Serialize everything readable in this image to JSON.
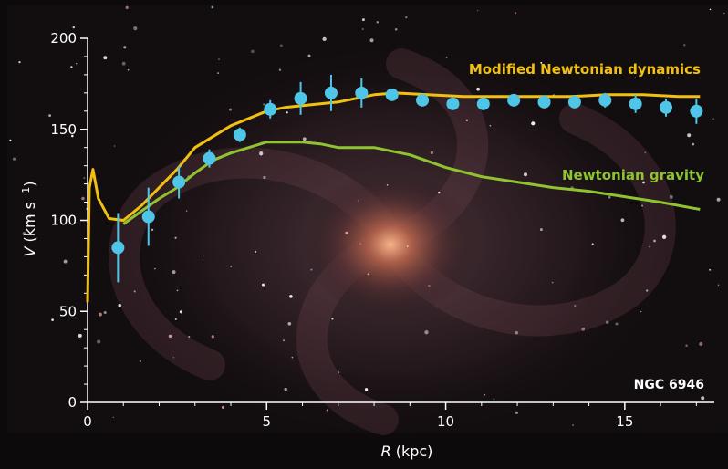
{
  "chart_data": {
    "type": "line",
    "background": "spiral galaxy photograph",
    "xlabel_var": "R",
    "xlabel_unit": "(kpc)",
    "ylabel_var": "V",
    "ylabel_unit_prefix": "(km s",
    "ylabel_unit_exp": "−1",
    "ylabel_unit_suffix": ")",
    "xlim": [
      0,
      17.5
    ],
    "ylim": [
      0,
      200
    ],
    "x_ticks": [
      0,
      5,
      10,
      15
    ],
    "y_ticks": [
      0,
      50,
      100,
      150,
      200
    ],
    "grid": false,
    "annotation": "NGC 6946",
    "series": [
      {
        "name": "Modified Newtonian dynamics",
        "kind": "line",
        "color": "#f2c010",
        "x": [
          0,
          0.05,
          0.15,
          0.3,
          0.6,
          1.0,
          1.5,
          2.0,
          2.5,
          3.0,
          3.5,
          4.0,
          4.5,
          5.0,
          5.5,
          6.0,
          7.0,
          8.0,
          8.6,
          9.5,
          10.5,
          11.5,
          12.5,
          13.5,
          14.5,
          15.5,
          16.5,
          17.1
        ],
        "y": [
          55,
          118,
          128,
          112,
          101,
          100,
          108,
          118,
          128,
          140,
          146,
          152,
          156,
          160,
          162,
          163,
          165,
          169,
          170,
          169,
          168,
          168,
          168,
          168,
          169,
          169,
          168,
          168
        ]
      },
      {
        "name": "Newtonian gravity",
        "kind": "line",
        "color": "#8fc430",
        "x": [
          1.0,
          1.5,
          2.0,
          2.5,
          3.0,
          3.5,
          4.0,
          4.5,
          5.0,
          5.5,
          6.0,
          6.5,
          7.0,
          8.0,
          9.0,
          10.0,
          11.0,
          12.0,
          13.0,
          14.0,
          15.0,
          16.0,
          17.1
        ],
        "y": [
          98,
          105,
          112,
          118,
          126,
          133,
          137,
          140,
          143,
          143,
          143,
          142,
          140,
          140,
          136,
          129,
          124,
          121,
          118,
          116,
          113,
          110,
          106
        ]
      },
      {
        "name": "",
        "kind": "points",
        "color": "#4fc6e8",
        "x": [
          0.85,
          1.7,
          2.55,
          3.4,
          4.25,
          5.1,
          5.95,
          6.8,
          7.65,
          8.5,
          9.35,
          10.2,
          11.05,
          11.9,
          12.75,
          13.6,
          14.45,
          15.3,
          16.15,
          17.0
        ],
        "y": [
          85,
          102,
          121,
          134,
          147,
          161,
          167,
          170,
          170,
          169,
          166,
          164,
          164,
          166,
          165,
          165,
          166,
          164,
          162,
          160
        ],
        "err": [
          19,
          16,
          9,
          5,
          4,
          5,
          9,
          10,
          8,
          3,
          3,
          3,
          3,
          3,
          3,
          3,
          4,
          5,
          5,
          7
        ]
      }
    ]
  }
}
